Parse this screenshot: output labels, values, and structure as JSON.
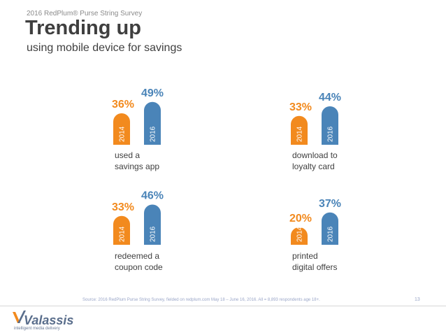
{
  "header": {
    "kicker": "2016 RedPlum® Purse String Survey",
    "title": "Trending up",
    "subtitle": "using mobile device for savings"
  },
  "colors": {
    "y2014": "#f28a1e",
    "y2016": "#4a84b8",
    "text": "#3f3f3f"
  },
  "chart_data": {
    "type": "bar",
    "years": [
      "2014",
      "2016"
    ],
    "unit": "%",
    "panels": [
      {
        "caption": [
          "used a",
          "savings app"
        ],
        "values": [
          36,
          49
        ]
      },
      {
        "caption": [
          "download to",
          "loyalty card"
        ],
        "values": [
          33,
          44
        ]
      },
      {
        "caption": [
          "redeemed a",
          "coupon code"
        ],
        "values": [
          33,
          46
        ]
      },
      {
        "caption": [
          "printed",
          "digital offers"
        ],
        "values": [
          20,
          37
        ]
      }
    ]
  },
  "footer": {
    "source": "Source: 2016 RedPlum Purse String Survey, fielded on redplum.com May 18 – June 16, 2016. All = 8,893 respondents age 18+.",
    "page_number": "13"
  },
  "logo": {
    "name": "Valassis",
    "tagline": "intelligent media delivery"
  }
}
